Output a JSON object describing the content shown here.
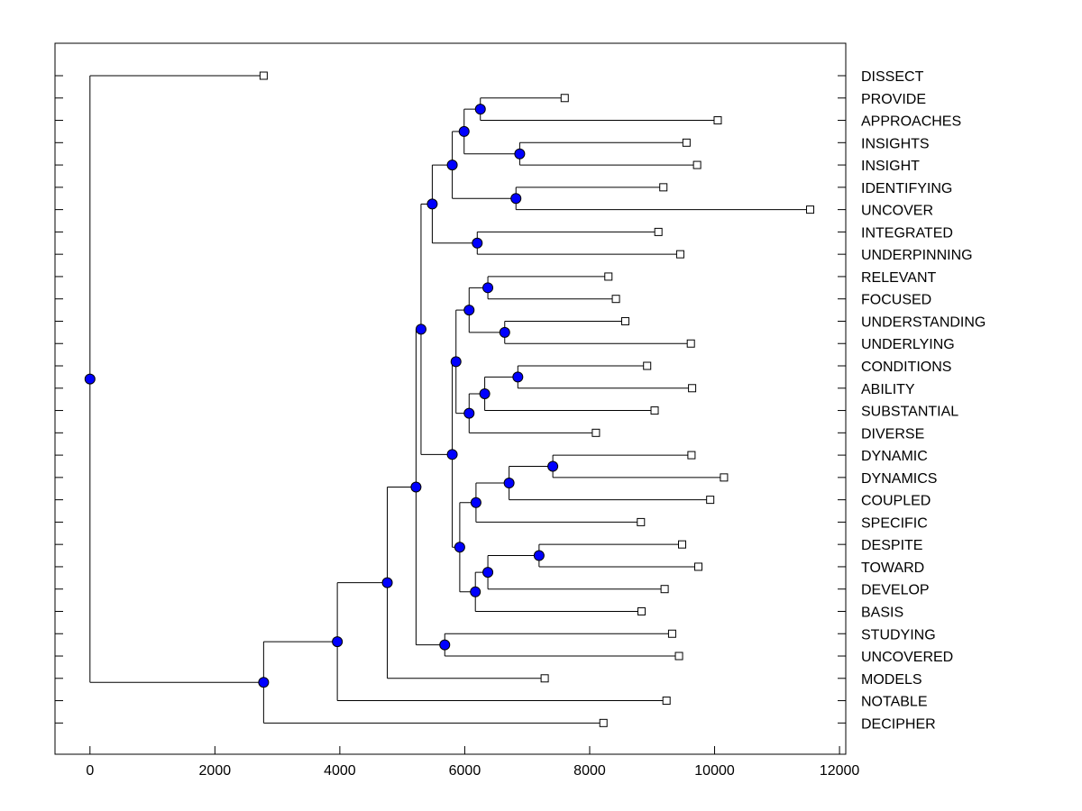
{
  "chart_data": {
    "type": "dendrogram",
    "orientation": "horizontal",
    "title": "",
    "xlabel": "",
    "ylabel": "",
    "xlim": [
      -560,
      12100
    ],
    "xticks": [
      0,
      2000,
      4000,
      6000,
      8000,
      10000,
      12000
    ],
    "xtick_labels": [
      "0",
      "2000",
      "4000",
      "6000",
      "8000",
      "10000",
      "12000"
    ],
    "grid": false,
    "colors": {
      "node": "#0000ff",
      "line": "#000000",
      "leaf": "#ffffff"
    },
    "leaves": [
      {
        "label": "DISSECT",
        "value": 2780
      },
      {
        "label": "PROVIDE",
        "value": 7600
      },
      {
        "label": "APPROACHES",
        "value": 10050
      },
      {
        "label": "INSIGHTS",
        "value": 9550
      },
      {
        "label": "INSIGHT",
        "value": 9720
      },
      {
        "label": "IDENTIFYING",
        "value": 9180
      },
      {
        "label": "UNCOVER",
        "value": 11530
      },
      {
        "label": "INTEGRATED",
        "value": 9100
      },
      {
        "label": "UNDERPINNING",
        "value": 9450
      },
      {
        "label": "RELEVANT",
        "value": 8300
      },
      {
        "label": "FOCUSED",
        "value": 8420
      },
      {
        "label": "UNDERSTANDING",
        "value": 8570
      },
      {
        "label": "UNDERLYING",
        "value": 9620
      },
      {
        "label": "CONDITIONS",
        "value": 8920
      },
      {
        "label": "ABILITY",
        "value": 9640
      },
      {
        "label": "SUBSTANTIAL",
        "value": 9040
      },
      {
        "label": "DIVERSE",
        "value": 8100
      },
      {
        "label": "DYNAMIC",
        "value": 9630
      },
      {
        "label": "DYNAMICS",
        "value": 10150
      },
      {
        "label": "COUPLED",
        "value": 9930
      },
      {
        "label": "SPECIFIC",
        "value": 8820
      },
      {
        "label": "DESPITE",
        "value": 9480
      },
      {
        "label": "TOWARD",
        "value": 9740
      },
      {
        "label": "DEVELOP",
        "value": 9200
      },
      {
        "label": "BASIS",
        "value": 8830
      },
      {
        "label": "STUDYING",
        "value": 9320
      },
      {
        "label": "UNCOVERED",
        "value": 9430
      },
      {
        "label": "MODELS",
        "value": 7280
      },
      {
        "label": "NOTABLE",
        "value": 9230
      },
      {
        "label": "DECIPHER",
        "value": 8220
      }
    ],
    "merges": [
      {
        "id": "m0",
        "value": 0,
        "children": [
          "L0",
          "m1"
        ]
      },
      {
        "id": "m1",
        "value": 2780,
        "children": [
          "m2",
          "L29"
        ]
      },
      {
        "id": "m2",
        "value": 3960,
        "children": [
          "m3",
          "L28"
        ]
      },
      {
        "id": "m3",
        "value": 4760,
        "children": [
          "m4",
          "L27"
        ]
      },
      {
        "id": "m4",
        "value": 5220,
        "children": [
          "m5",
          "m26"
        ]
      },
      {
        "id": "m5",
        "value": 5300,
        "children": [
          "m6",
          "m13"
        ]
      },
      {
        "id": "m6",
        "value": 5480,
        "children": [
          "m7",
          "m12"
        ]
      },
      {
        "id": "m7",
        "value": 5800,
        "children": [
          "m8",
          "m11"
        ]
      },
      {
        "id": "m8",
        "value": 5990,
        "children": [
          "m9",
          "m10"
        ]
      },
      {
        "id": "m9",
        "value": 6250,
        "children": [
          "L1",
          "L2"
        ]
      },
      {
        "id": "m10",
        "value": 6880,
        "children": [
          "L3",
          "L4"
        ]
      },
      {
        "id": "m11",
        "value": 6820,
        "children": [
          "L5",
          "L6"
        ]
      },
      {
        "id": "m12",
        "value": 6200,
        "children": [
          "L7",
          "L8"
        ]
      },
      {
        "id": "m13",
        "value": 5800,
        "children": [
          "m14",
          "m19"
        ]
      },
      {
        "id": "m14",
        "value": 5860,
        "children": [
          "m15",
          "m16"
        ]
      },
      {
        "id": "m15",
        "value": 6070,
        "children": [
          "m17",
          "m18"
        ]
      },
      {
        "id": "m16",
        "value": 6070,
        "children": [
          "m20",
          "L16"
        ]
      },
      {
        "id": "m17",
        "value": 6370,
        "children": [
          "L9",
          "L10"
        ]
      },
      {
        "id": "m18",
        "value": 6640,
        "children": [
          "L11",
          "L12"
        ]
      },
      {
        "id": "m20",
        "value": 6320,
        "children": [
          "m21",
          "L15"
        ]
      },
      {
        "id": "m21",
        "value": 6850,
        "children": [
          "L13",
          "L14"
        ]
      },
      {
        "id": "m19",
        "value": 5920,
        "children": [
          "m22",
          "m24"
        ]
      },
      {
        "id": "m22",
        "value": 6180,
        "children": [
          "m23",
          "L20"
        ]
      },
      {
        "id": "m23",
        "value": 6710,
        "children": [
          "m25",
          "L19"
        ]
      },
      {
        "id": "m25",
        "value": 7410,
        "children": [
          "L17",
          "L18"
        ]
      },
      {
        "id": "m24",
        "value": 6170,
        "children": [
          "m27",
          "L24"
        ]
      },
      {
        "id": "m27",
        "value": 6370,
        "children": [
          "m28",
          "L23"
        ]
      },
      {
        "id": "m28",
        "value": 7190,
        "children": [
          "L21",
          "L22"
        ]
      },
      {
        "id": "m26",
        "value": 5680,
        "children": [
          "L25",
          "L26"
        ]
      }
    ]
  }
}
